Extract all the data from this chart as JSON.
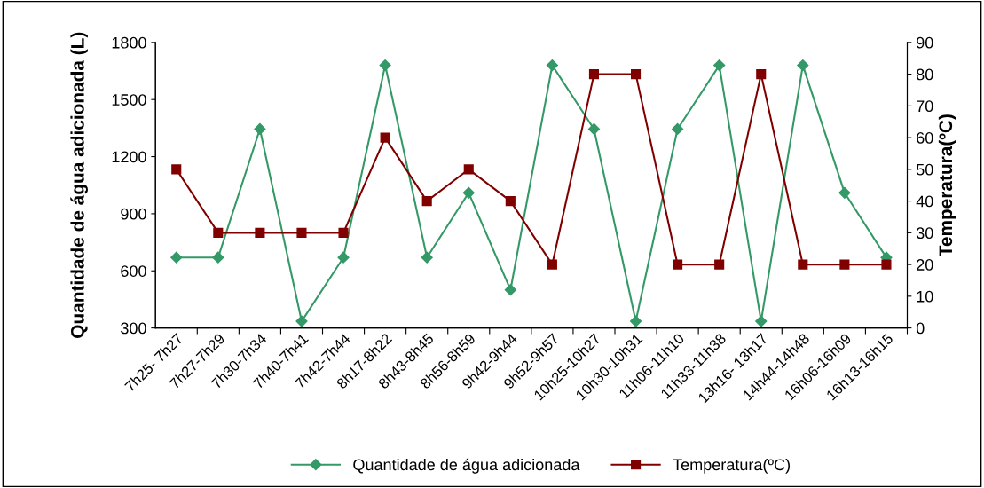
{
  "chart_data": {
    "type": "line",
    "ylabel": "Quantidade de água adicionada (L)",
    "y2label": "Temperatura(ºC)",
    "categories": [
      "7h25- 7h27",
      "7h27-7h29",
      "7h30-7h34",
      "7h40-7h41",
      "7h42-7h44",
      "8h17-8h22",
      "8h43-8h45",
      "8h56-8h59",
      "9h42-9h44",
      "9h52-9h57",
      "10h25-10h27",
      "10h30-10h31",
      "11h06-11h10",
      "11h33-11h38",
      "13h16- 13h17",
      "14h44-14h48",
      "16h06-16h09",
      "16h13-16h15"
    ],
    "series": [
      {
        "name": "Quantidade de água adicionada",
        "color": "#339966",
        "marker": "diamond",
        "values": [
          670,
          670,
          1345,
          335,
          670,
          1680,
          670,
          1010,
          500,
          1680,
          1345,
          335,
          1345,
          1680,
          335,
          1680,
          1010,
          670
        ]
      },
      {
        "name": "Temperatura(ºC)",
        "color": "#800000",
        "marker": "square",
        "axis": "y2",
        "values": [
          50,
          30,
          30,
          30,
          30,
          60,
          40,
          50,
          40,
          20,
          80,
          80,
          20,
          20,
          80,
          20,
          20,
          20
        ]
      }
    ],
    "ylim": [
      300,
      1800
    ],
    "yticks": [
      300,
      600,
      900,
      1200,
      1500,
      1800
    ],
    "y2lim": [
      0,
      90
    ],
    "y2ticks": [
      0,
      10,
      20,
      30,
      40,
      50,
      60,
      70,
      80,
      90
    ],
    "grid": false,
    "legend": "bottom",
    "line_style": "solid"
  }
}
